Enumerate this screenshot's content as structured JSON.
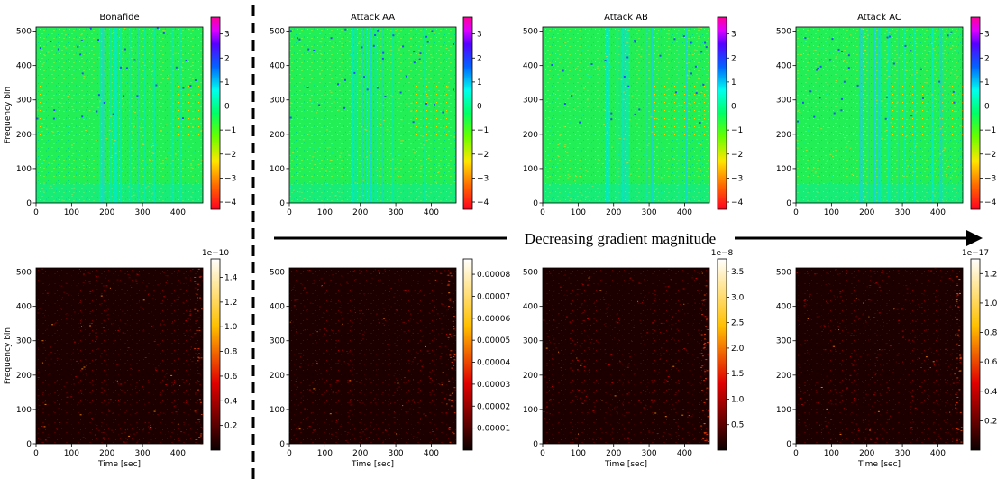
{
  "figure": {
    "arrow_label": "Decreasing gradient magnitude"
  },
  "chart_data": [
    {
      "type": "heatmap",
      "title": "Bonafide",
      "xlabel": "",
      "ylabel": "Frequency bin",
      "xlim": [
        0,
        470
      ],
      "ylim": [
        0,
        512
      ],
      "xticks": [
        "0",
        "100",
        "200",
        "300",
        "400"
      ],
      "yticks": [
        "0",
        "100",
        "200",
        "300",
        "400",
        "500"
      ],
      "colormap": "gist_rainbow",
      "colorbar": {
        "range": [
          -4.3,
          3.7
        ],
        "ticks": [
          "3",
          "2",
          "1",
          "0",
          "−1",
          "−2",
          "−3",
          "−4"
        ],
        "exponent": ""
      }
    },
    {
      "type": "heatmap",
      "title": "Attack AA",
      "xlabel": "",
      "ylabel": "",
      "xlim": [
        0,
        470
      ],
      "ylim": [
        0,
        512
      ],
      "xticks": [
        "0",
        "100",
        "200",
        "300",
        "400"
      ],
      "yticks": [
        "0",
        "100",
        "200",
        "300",
        "400",
        "500"
      ],
      "colormap": "gist_rainbow",
      "colorbar": {
        "range": [
          -4.3,
          3.7
        ],
        "ticks": [
          "3",
          "2",
          "1",
          "0",
          "−1",
          "−2",
          "−3",
          "−4"
        ],
        "exponent": ""
      }
    },
    {
      "type": "heatmap",
      "title": "Attack AB",
      "xlabel": "",
      "ylabel": "",
      "xlim": [
        0,
        470
      ],
      "ylim": [
        0,
        512
      ],
      "xticks": [
        "0",
        "100",
        "200",
        "300",
        "400"
      ],
      "yticks": [
        "0",
        "100",
        "200",
        "300",
        "400",
        "500"
      ],
      "colormap": "gist_rainbow",
      "colorbar": {
        "range": [
          -4.3,
          3.7
        ],
        "ticks": [
          "3",
          "2",
          "1",
          "0",
          "−1",
          "−2",
          "−3",
          "−4"
        ],
        "exponent": ""
      }
    },
    {
      "type": "heatmap",
      "title": "Attack AC",
      "xlabel": "",
      "ylabel": "",
      "xlim": [
        0,
        470
      ],
      "ylim": [
        0,
        512
      ],
      "xticks": [
        "0",
        "100",
        "200",
        "300",
        "400"
      ],
      "yticks": [
        "0",
        "100",
        "200",
        "300",
        "400",
        "500"
      ],
      "colormap": "gist_rainbow",
      "colorbar": {
        "range": [
          -4.3,
          3.7
        ],
        "ticks": [
          "3",
          "2",
          "1",
          "0",
          "−1",
          "−2",
          "−3",
          "−4"
        ],
        "exponent": ""
      }
    },
    {
      "type": "heatmap",
      "title": "",
      "xlabel": "Time [sec]",
      "ylabel": "Frequency bin",
      "xlim": [
        0,
        470
      ],
      "ylim": [
        0,
        512
      ],
      "xticks": [
        "0",
        "100",
        "200",
        "300",
        "400"
      ],
      "yticks": [
        "0",
        "100",
        "200",
        "300",
        "400",
        "500"
      ],
      "colormap": "hot",
      "colorbar": {
        "range": [
          0,
          1.55
        ],
        "ticks": [
          "1.4",
          "1.2",
          "1.0",
          "0.8",
          "0.6",
          "0.4",
          "0.2"
        ],
        "exponent": "1e−10"
      }
    },
    {
      "type": "heatmap",
      "title": "",
      "xlabel": "Time [sec]",
      "ylabel": "",
      "xlim": [
        0,
        470
      ],
      "ylim": [
        0,
        512
      ],
      "xticks": [
        "0",
        "100",
        "200",
        "300",
        "400"
      ],
      "yticks": [
        "0",
        "100",
        "200",
        "300",
        "400",
        "500"
      ],
      "colormap": "hot",
      "colorbar": {
        "range": [
          0,
          8.7e-05
        ],
        "ticks": [
          "0.00008",
          "0.00007",
          "0.00006",
          "0.00005",
          "0.00004",
          "0.00003",
          "0.00002",
          "0.00001"
        ],
        "exponent": ""
      }
    },
    {
      "type": "heatmap",
      "title": "",
      "xlabel": "Time [sec]",
      "ylabel": "",
      "xlim": [
        0,
        470
      ],
      "ylim": [
        0,
        512
      ],
      "xticks": [
        "0",
        "100",
        "200",
        "300",
        "400"
      ],
      "yticks": [
        "0",
        "100",
        "200",
        "300",
        "400",
        "500"
      ],
      "colormap": "hot",
      "colorbar": {
        "range": [
          0,
          3.75
        ],
        "ticks": [
          "3.5",
          "3.0",
          "2.5",
          "2.0",
          "1.5",
          "1.0",
          "0.5"
        ],
        "exponent": "1e−8"
      }
    },
    {
      "type": "heatmap",
      "title": "",
      "xlabel": "Time [sec]",
      "ylabel": "",
      "xlim": [
        0,
        470
      ],
      "ylim": [
        0,
        512
      ],
      "xticks": [
        "0",
        "100",
        "200",
        "300",
        "400"
      ],
      "yticks": [
        "0",
        "100",
        "200",
        "300",
        "400",
        "500"
      ],
      "colormap": "hot",
      "colorbar": {
        "range": [
          0,
          1.3
        ],
        "ticks": [
          "1.2",
          "1.0",
          "0.8",
          "0.6",
          "0.4",
          "0.2"
        ],
        "exponent": "1e−17"
      }
    }
  ]
}
